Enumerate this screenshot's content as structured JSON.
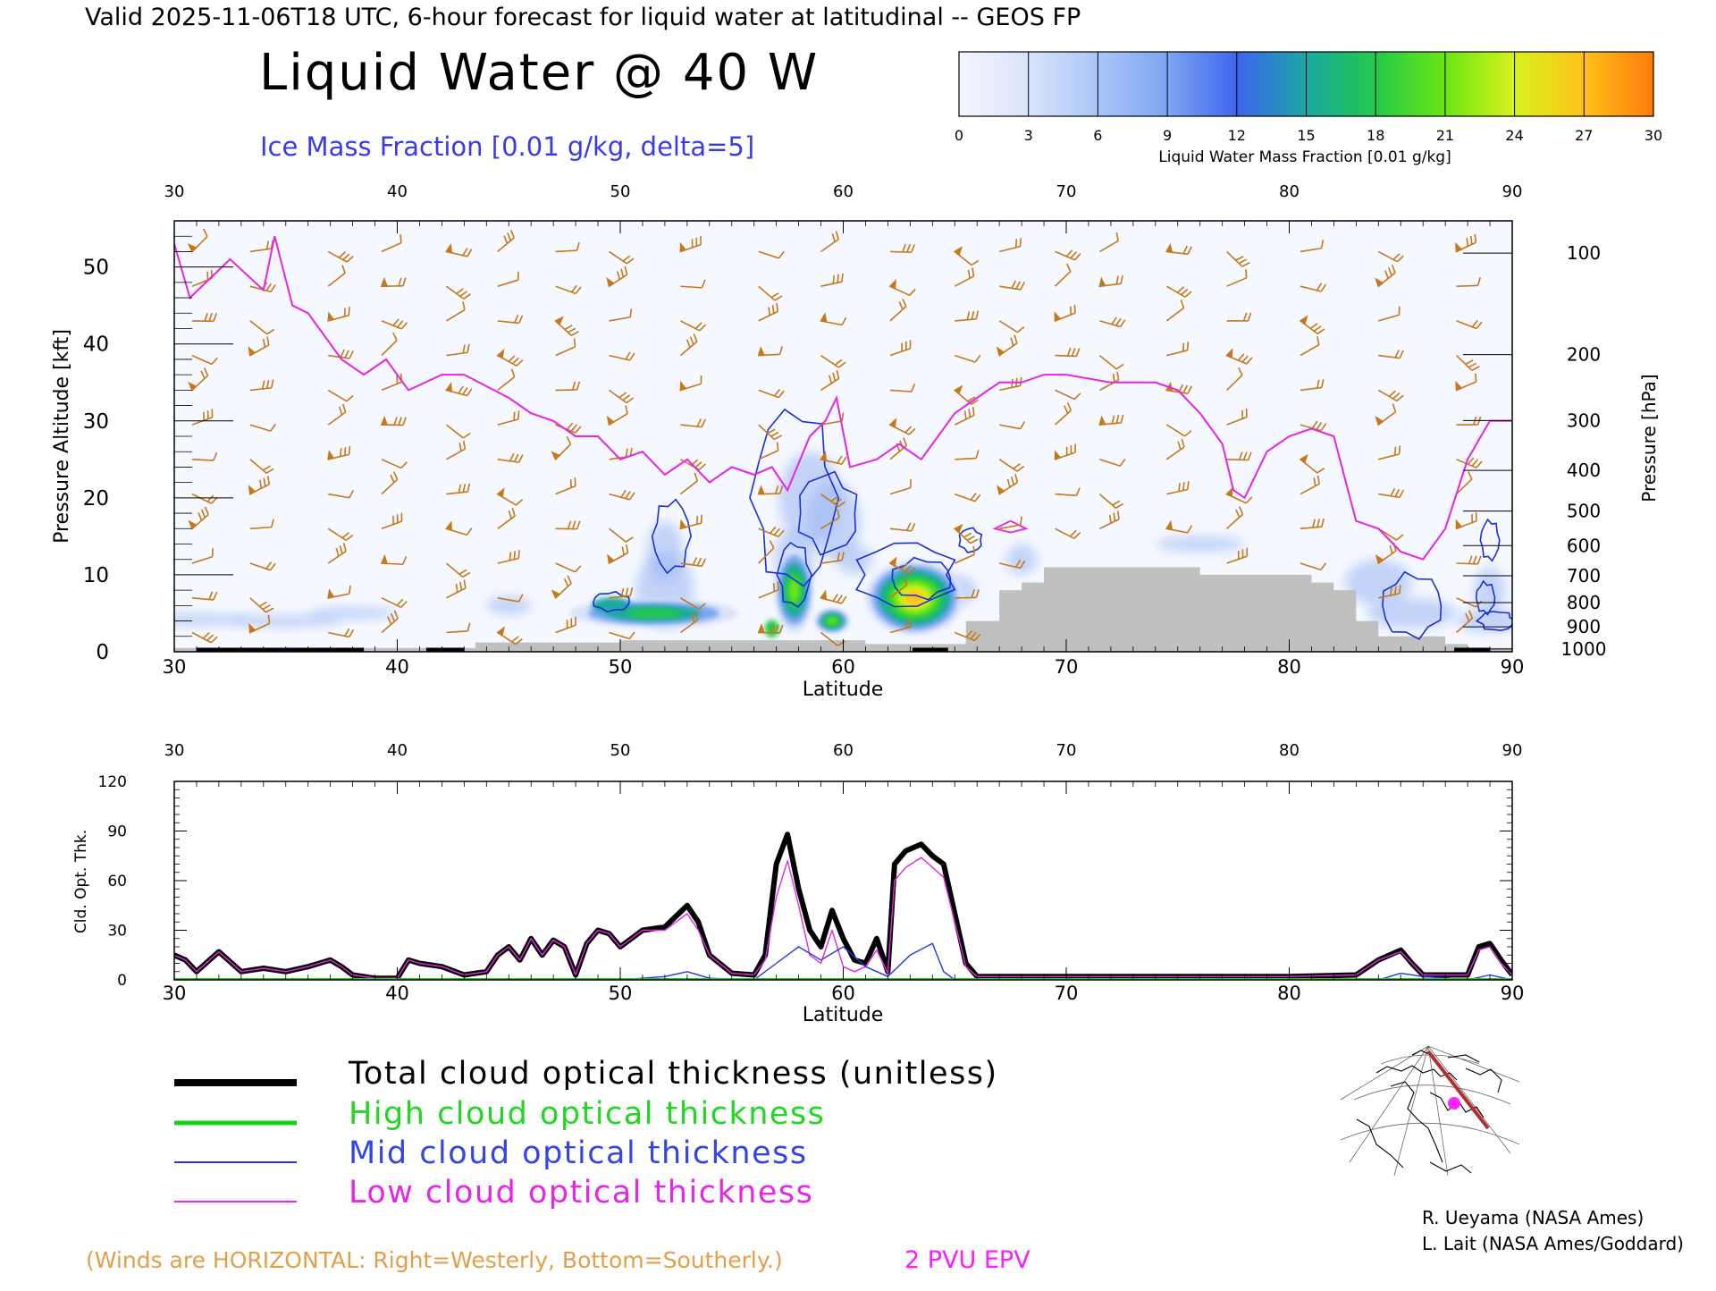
{
  "header": {
    "valid_line": "Valid 2025-11-06T18 UTC, 6-hour forecast for liquid water at latitudinal -- GEOS FP",
    "main_title": "Liquid Water @ 40 W",
    "subtitle": "Ice Mass Fraction [0.01 g/kg, delta=5]"
  },
  "colorbar": {
    "ticks": [
      "0",
      "3",
      "6",
      "9",
      "12",
      "15",
      "18",
      "21",
      "24",
      "27",
      "30"
    ],
    "label": "Liquid Water Mass Fraction [0.01 g/kg]",
    "colors": [
      "#f4f6ff",
      "#d9e3fb",
      "#aac6f7",
      "#7da6f2",
      "#3f64ee",
      "#1aa7a3",
      "#24c94a",
      "#6ae613",
      "#d8f21d",
      "#ffc11a",
      "#ff7a0c"
    ]
  },
  "colors": {
    "contour_blue": "#1a2fd6",
    "tropopause_magenta": "#e624e6",
    "wind_barb": "#c77818",
    "terrain": "#c0c0c0",
    "total_line": "#000000",
    "high_line": "#19d119",
    "mid_line": "#2436e0",
    "low_line": "#e626e6"
  },
  "legend": {
    "total": "Total cloud optical thickness (unitless)",
    "high": "High cloud optical thickness",
    "mid": "Mid cloud optical thickness",
    "low": "Low cloud optical thickness"
  },
  "footer": {
    "winds_note": "(Winds are HORIZONTAL: Right=Westerly, Bottom=Southerly.)",
    "epv_label": "2 PVU EPV",
    "credit1": "R. Ueyama (NASA Ames)",
    "credit2": "L. Lait (NASA Ames/Goddard)"
  },
  "chart_data": [
    {
      "type": "heatmap",
      "xlabel": "Latitude",
      "ylabel": "Pressure Altitude [kft]",
      "ylabel_right": "Pressure [hPa]",
      "xlim": [
        30,
        90
      ],
      "ylim": [
        0,
        56
      ],
      "x_ticks": [
        "30",
        "40",
        "50",
        "60",
        "70",
        "80",
        "90"
      ],
      "y_ticks": [
        "0",
        "10",
        "20",
        "30",
        "40",
        "50"
      ],
      "pressure_ticks": [
        "100",
        "200",
        "300",
        "400",
        "500",
        "600",
        "700",
        "800",
        "900",
        "1000"
      ],
      "tropopause_2pvu_kft": {
        "lat": [
          30,
          30.7,
          32.5,
          34,
          34.5,
          35.3,
          36,
          37.5,
          38.5,
          39.5,
          40.5,
          42,
          43,
          45,
          46,
          47,
          48,
          49,
          50,
          51,
          52,
          53,
          54,
          55,
          56,
          56.8,
          57.5,
          58.5,
          59.2,
          59.7,
          60.3,
          61.5,
          62.5,
          63.5,
          64,
          65,
          66,
          67,
          68,
          69,
          70,
          72,
          74,
          75,
          76,
          77,
          77.5,
          78,
          79,
          80,
          81,
          82,
          83,
          84,
          85,
          86,
          87,
          88,
          89,
          90
        ],
        "kft": [
          53,
          46,
          51,
          47,
          54,
          45,
          44,
          38,
          36,
          38,
          34,
          36,
          36,
          33,
          31,
          30,
          28,
          28,
          25,
          26,
          23,
          25,
          22,
          24,
          23,
          24,
          21,
          28,
          30,
          33,
          24,
          25,
          27,
          25,
          27,
          31,
          33,
          35,
          35,
          36,
          36,
          35,
          35,
          34,
          31,
          27,
          21,
          20,
          26,
          28,
          29,
          28,
          17,
          16,
          13,
          12,
          16,
          25,
          30,
          30
        ]
      },
      "liquid_water_features": [
        {
          "lat": 51.5,
          "kft": 5,
          "max_value": 18
        },
        {
          "lat": 57.8,
          "kft": 8,
          "max_value": 21
        },
        {
          "lat": 63.2,
          "kft": 7,
          "max_value": 27
        },
        {
          "lat": 59.5,
          "kft": 4,
          "max_value": 21
        }
      ],
      "terrain_kft": {
        "lat": [
          30,
          38.5,
          41.5,
          43.5,
          50,
          56.5,
          61,
          63.5,
          64.8,
          65.5,
          67,
          68,
          69,
          70,
          75,
          76,
          81,
          82,
          83,
          84,
          87,
          88,
          90
        ],
        "kft": [
          0.5,
          0.5,
          0.5,
          1.2,
          1.5,
          1.5,
          1,
          1,
          1,
          4,
          8,
          9,
          11,
          11,
          11,
          10,
          9,
          8,
          4,
          2,
          1,
          0.5,
          0.5
        ]
      }
    },
    {
      "type": "line",
      "xlabel": "Latitude",
      "ylabel": "Cld. Opt. Thk.",
      "xlim": [
        30,
        90
      ],
      "ylim": [
        0,
        120
      ],
      "x_ticks": [
        "30",
        "40",
        "50",
        "60",
        "70",
        "80",
        "90"
      ],
      "y_ticks": [
        "0",
        "30",
        "60",
        "90",
        "120"
      ],
      "series": [
        {
          "name": "Total cloud optical thickness (unitless)",
          "x": [
            30,
            30.5,
            31,
            32,
            33,
            34,
            35,
            36,
            37,
            37.5,
            38,
            39,
            40,
            40.5,
            41,
            42,
            43,
            44,
            44.5,
            45,
            45.5,
            46,
            46.5,
            47,
            47.5,
            48,
            48.5,
            49,
            49.5,
            50,
            51,
            52,
            53,
            53.5,
            54,
            55,
            56,
            56.5,
            57,
            57.5,
            58,
            58.5,
            59,
            59.5,
            60,
            60.5,
            61,
            61.5,
            62,
            62.3,
            62.8,
            63.5,
            64,
            64.5,
            65,
            65.5,
            66,
            70,
            75,
            80,
            83,
            84,
            85,
            85.5,
            86,
            87,
            88,
            88.5,
            89,
            89.5,
            90
          ],
          "y": [
            15,
            12,
            5,
            17,
            5,
            7,
            5,
            8,
            12,
            8,
            3,
            1,
            1,
            12,
            10,
            8,
            3,
            5,
            15,
            20,
            12,
            25,
            15,
            24,
            20,
            3,
            22,
            30,
            28,
            20,
            30,
            32,
            45,
            35,
            15,
            4,
            3,
            15,
            70,
            88,
            55,
            30,
            20,
            42,
            25,
            12,
            10,
            25,
            5,
            70,
            78,
            82,
            75,
            70,
            40,
            10,
            2,
            2,
            2,
            2,
            3,
            12,
            18,
            10,
            3,
            3,
            3,
            20,
            22,
            12,
            3
          ]
        },
        {
          "name": "High cloud optical thickness",
          "x": [
            30,
            90
          ],
          "y": [
            0,
            0
          ]
        },
        {
          "name": "Mid cloud optical thickness",
          "x": [
            30,
            50,
            52,
            53,
            54,
            56,
            57,
            58,
            59,
            60,
            61,
            62,
            63,
            64,
            64.5,
            65,
            84,
            85,
            86,
            88,
            89,
            90
          ],
          "y": [
            0,
            0,
            2,
            5,
            1,
            0,
            10,
            20,
            12,
            20,
            8,
            2,
            15,
            22,
            5,
            0,
            0,
            4,
            2,
            0,
            3,
            0
          ],
          "description_free": true
        },
        {
          "name": "Low cloud optical thickness",
          "x": [
            30,
            30.5,
            31,
            32,
            33,
            34,
            35,
            36,
            37,
            37.5,
            38,
            39,
            40,
            40.5,
            41,
            42,
            43,
            44,
            44.5,
            45,
            45.5,
            46,
            46.5,
            47,
            47.5,
            48,
            48.5,
            49,
            49.5,
            50,
            51,
            52,
            53,
            53.5,
            54,
            55,
            56,
            56.5,
            57,
            57.5,
            58,
            58.5,
            59,
            59.5,
            60,
            60.5,
            61,
            61.5,
            62,
            62.3,
            62.8,
            63.5,
            64,
            64.5,
            65,
            65.5,
            66,
            70,
            75,
            80,
            83,
            84,
            85,
            85.5,
            86,
            87,
            88,
            88.5,
            89,
            89.5,
            90
          ],
          "y": [
            15,
            12,
            5,
            17,
            5,
            7,
            5,
            8,
            12,
            8,
            3,
            1,
            1,
            12,
            10,
            8,
            3,
            5,
            15,
            20,
            12,
            25,
            15,
            24,
            20,
            3,
            22,
            30,
            28,
            20,
            30,
            30,
            40,
            30,
            15,
            4,
            3,
            12,
            50,
            72,
            45,
            15,
            10,
            30,
            8,
            5,
            8,
            18,
            4,
            60,
            68,
            74,
            68,
            62,
            35,
            8,
            2,
            2,
            2,
            2,
            3,
            12,
            17,
            10,
            3,
            3,
            3,
            18,
            20,
            10,
            3
          ]
        }
      ]
    }
  ]
}
